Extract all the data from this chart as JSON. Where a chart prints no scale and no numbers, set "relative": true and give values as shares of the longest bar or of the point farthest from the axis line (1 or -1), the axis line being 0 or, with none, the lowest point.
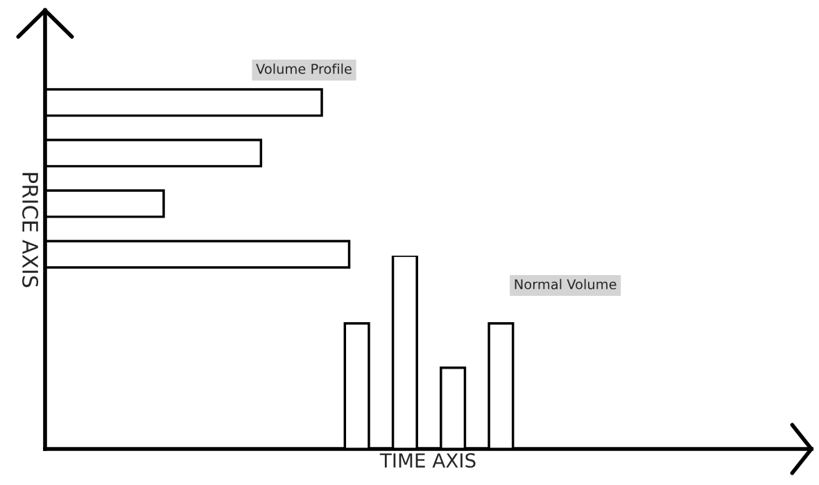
{
  "chart_data": [
    {
      "type": "bar",
      "title": "Volume Profile",
      "xlabel": "TIME AXIS",
      "ylabel": "PRICE AXIS",
      "orientation": "horizontal",
      "relative": true,
      "tick_labels": false,
      "categories": [
        null,
        null,
        null,
        null
      ],
      "series": [
        {
          "color": "#ffffff",
          "values": [
            0.91,
            0.71,
            0.39,
            1.0
          ]
        }
      ]
    },
    {
      "type": "bar",
      "title": "Normal Volume",
      "relative": true,
      "tick_labels": false,
      "categories": [
        null,
        null,
        null,
        null
      ],
      "series": [
        {
          "color": "#ffffff",
          "values": [
            0.65,
            1.0,
            0.42,
            0.65
          ]
        }
      ]
    }
  ]
}
